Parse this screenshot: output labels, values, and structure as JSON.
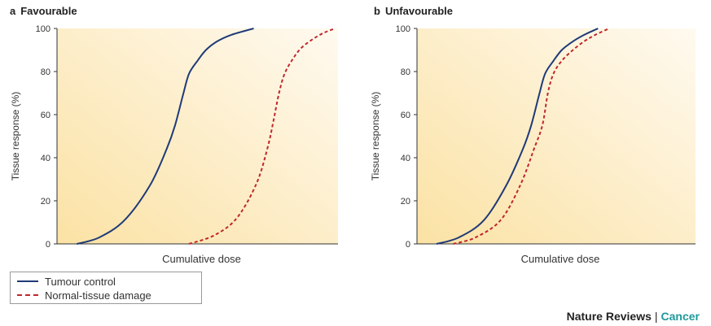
{
  "chart_data": [
    {
      "type": "line",
      "panel_letter": "a",
      "title": "Favourable",
      "xlabel": "Cumulative dose",
      "ylabel": "Tissue response (%)",
      "ylim": [
        0,
        100
      ],
      "yticks": [
        "0",
        "20",
        "40",
        "60",
        "80",
        "100"
      ],
      "grid": false,
      "series": [
        {
          "name": "Tumour control",
          "style": "solid",
          "color": "#1f3a78",
          "x": [
            0.07,
            0.15,
            0.24,
            0.33,
            0.39,
            0.42,
            0.45,
            0.47,
            0.5,
            0.53,
            0.57,
            0.62,
            0.7
          ],
          "y": [
            0,
            3,
            11,
            27,
            44,
            55,
            70,
            79,
            85,
            90,
            94,
            97,
            100
          ]
        },
        {
          "name": "Normal-tissue damage",
          "style": "dashed",
          "color": "#c0272d",
          "x": [
            0.47,
            0.56,
            0.64,
            0.71,
            0.75,
            0.77,
            0.79,
            0.81,
            0.84,
            0.87,
            0.91,
            0.95,
            0.99
          ],
          "y": [
            0,
            4,
            12,
            28,
            45,
            57,
            70,
            79,
            86,
            91,
            95,
            98,
            100
          ]
        }
      ]
    },
    {
      "type": "line",
      "panel_letter": "b",
      "title": "Unfavourable",
      "xlabel": "Cumulative dose",
      "ylabel": "Tissue response (%)",
      "ylim": [
        0,
        100
      ],
      "yticks": [
        "0",
        "20",
        "40",
        "60",
        "80",
        "100"
      ],
      "grid": false,
      "series": [
        {
          "name": "Tumour control",
          "style": "solid",
          "color": "#1f3a78",
          "x": [
            0.07,
            0.15,
            0.24,
            0.32,
            0.38,
            0.41,
            0.44,
            0.46,
            0.49,
            0.52,
            0.56,
            0.6,
            0.65
          ],
          "y": [
            0,
            3,
            11,
            27,
            44,
            55,
            70,
            79,
            85,
            90,
            94,
            97,
            100
          ]
        },
        {
          "name": "Normal-tissue damage",
          "style": "dashed",
          "color": "#c0272d",
          "x": [
            0.13,
            0.21,
            0.3,
            0.37,
            0.42,
            0.45,
            0.47,
            0.49,
            0.52,
            0.56,
            0.6,
            0.64,
            0.69
          ],
          "y": [
            0,
            3,
            11,
            27,
            44,
            55,
            70,
            79,
            85,
            90,
            94,
            97,
            100
          ]
        }
      ]
    }
  ],
  "legend": {
    "tumour_label": "Tumour control",
    "normal_label": "Normal-tissue damage"
  },
  "brand": {
    "part1": "Nature Reviews",
    "separator": "|",
    "part2": "Cancer"
  },
  "colors": {
    "panel_bg_light": "#fffaee",
    "panel_bg_dark": "#fbe3a6"
  }
}
